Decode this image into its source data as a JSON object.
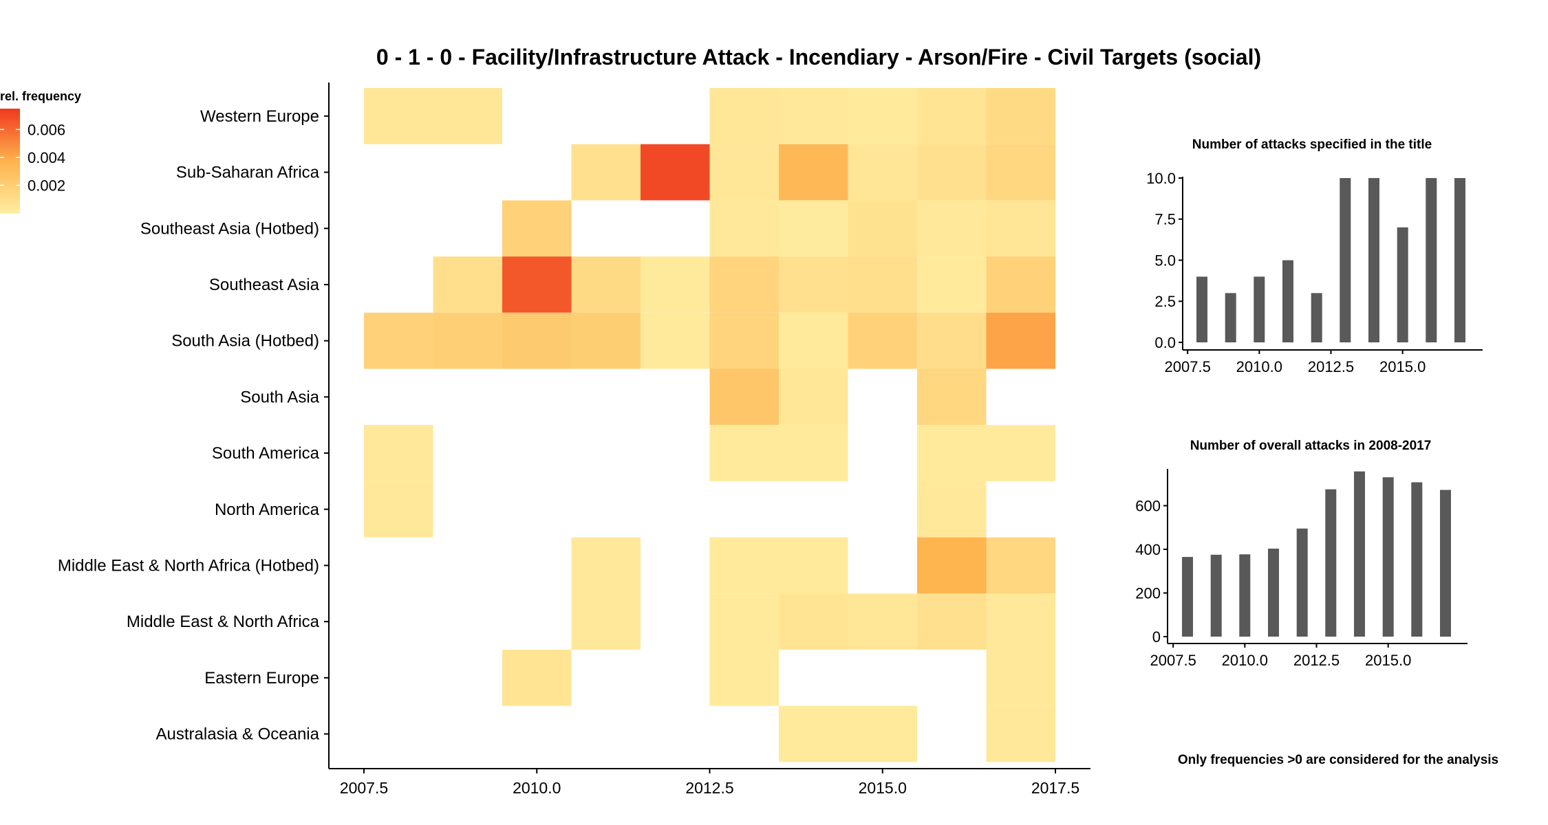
{
  "chart_data": [
    {
      "type": "heatmap",
      "title": "0 - 1 - 0 - Facility/Infrastructure Attack - Incendiary - Arson/Fire - Civil Targets (social)",
      "x": [
        2008,
        2009,
        2010,
        2011,
        2012,
        2013,
        2014,
        2015,
        2016,
        2017
      ],
      "x_ticks": [
        "2007.5",
        "2010.0",
        "2012.5",
        "2015.0",
        "2017.5"
      ],
      "xlim": [
        2007.5,
        2017.5
      ],
      "y": [
        "Western Europe",
        "Sub-Saharan Africa",
        "Southeast Asia (Hotbed)",
        "Southeast Asia",
        "South Asia (Hotbed)",
        "South Asia",
        "South America",
        "North America",
        "Middle East & North Africa (Hotbed)",
        "Middle East & North Africa",
        "Eastern Europe",
        "Australasia & Oceania"
      ],
      "values": [
        [
          0.0004,
          0.0004,
          null,
          null,
          null,
          0.0004,
          0.0003,
          0.0002,
          0.0006,
          0.0012
        ],
        [
          null,
          null,
          null,
          0.0008,
          0.0071,
          0.0004,
          0.0033,
          0.0005,
          0.0008,
          0.0014
        ],
        [
          null,
          null,
          0.0018,
          null,
          null,
          0.0003,
          0.0001,
          0.0007,
          0.0003,
          0.0005
        ],
        [
          null,
          0.0009,
          0.0066,
          0.0012,
          0.0002,
          0.0016,
          0.0008,
          0.0009,
          0.0002,
          0.0018
        ],
        [
          0.0017,
          0.0019,
          0.0022,
          0.002,
          0.0002,
          0.0016,
          0.0002,
          0.0017,
          0.001,
          0.0042
        ],
        [
          null,
          null,
          null,
          null,
          null,
          0.0025,
          0.0004,
          null,
          0.0014,
          null
        ],
        [
          0.0003,
          null,
          null,
          null,
          null,
          0.0002,
          0.0002,
          null,
          0.0002,
          0.0002
        ],
        [
          0.0003,
          null,
          null,
          null,
          null,
          null,
          null,
          null,
          0.0003,
          null
        ],
        [
          null,
          null,
          null,
          0.0003,
          null,
          0.0002,
          0.0002,
          null,
          0.0036,
          0.0014
        ],
        [
          null,
          null,
          null,
          0.0003,
          null,
          0.0002,
          0.0006,
          0.0004,
          0.0008,
          0.0003
        ],
        [
          null,
          null,
          0.0006,
          null,
          null,
          0.0002,
          null,
          null,
          null,
          0.0003
        ],
        [
          null,
          null,
          null,
          null,
          null,
          null,
          0.0002,
          0.0002,
          null,
          0.0003
        ]
      ],
      "legend": {
        "title": "rel. frequency",
        "ticks": [
          0.002,
          0.004,
          0.006
        ],
        "tick_labels": [
          "0.002",
          "0.004",
          "0.006"
        ],
        "range": [
          0,
          0.0075
        ],
        "placement": "top-left"
      }
    },
    {
      "type": "bar",
      "title": "Number of attacks specified in the title",
      "x": [
        2008,
        2009,
        2010,
        2011,
        2012,
        2013,
        2014,
        2015,
        2016,
        2017
      ],
      "values": [
        4,
        3,
        4,
        5,
        3,
        10,
        10,
        7,
        10,
        10
      ],
      "x_ticks": [
        "2007.5",
        "2010.0",
        "2012.5",
        "2015.0"
      ],
      "y_ticks": [
        "0.0",
        "2.5",
        "5.0",
        "7.5",
        "10.0"
      ],
      "xlim": [
        2007.4,
        2017.6
      ],
      "ylim": [
        0,
        10.5
      ]
    },
    {
      "type": "bar",
      "title": "Number of overall attacks in 2008-2017",
      "x": [
        2008,
        2009,
        2010,
        2011,
        2012,
        2013,
        2014,
        2015,
        2016,
        2017
      ],
      "values": [
        365,
        375,
        377,
        403,
        495,
        675,
        757,
        730,
        707,
        672
      ],
      "x_ticks": [
        "2007.5",
        "2010.0",
        "2012.5",
        "2015.0"
      ],
      "y_ticks": [
        "0",
        "200",
        "400",
        "600"
      ],
      "xlim": [
        2007.4,
        2017.6
      ],
      "ylim": [
        0,
        800
      ]
    }
  ],
  "note": "Only frequencies >0 are considered for the analysis",
  "colors": {
    "low": "#ffeda0",
    "mid": "#feb24c",
    "high": "#f03b20",
    "bar": "#595959",
    "axis": "#000000"
  }
}
